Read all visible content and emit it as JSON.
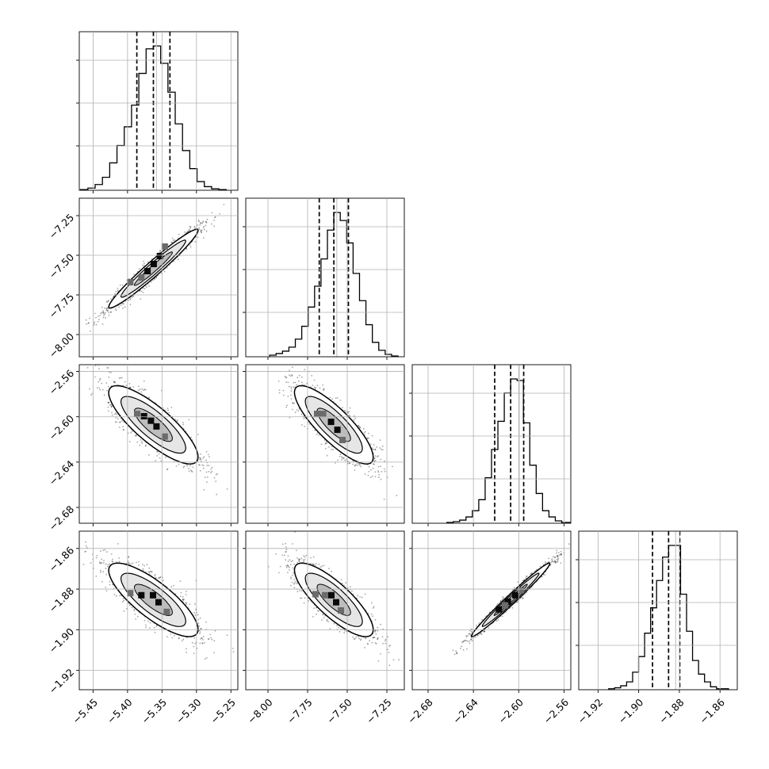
{
  "chart_data": {
    "type": "corner",
    "grid": true,
    "params": [
      {
        "range": [
          -5.47,
          -5.24
        ],
        "ticks": [
          -5.45,
          -5.4,
          -5.35,
          -5.3,
          -5.25
        ],
        "tick_labels": [
          "−5.45",
          "−5.40",
          "−5.35",
          "−5.30",
          "−5.25"
        ],
        "quantiles": [
          -5.3865,
          -5.3625,
          -5.3385
        ],
        "truth": -5.358,
        "hist_counts": [
          1,
          3,
          8,
          18,
          38,
          62,
          88,
          118,
          162,
          196,
          200,
          176,
          136,
          92,
          55,
          30,
          12,
          5,
          2,
          1
        ]
      },
      {
        "range": [
          -8.14,
          -7.14
        ],
        "ticks": [
          -8.0,
          -7.75,
          -7.5,
          -7.25
        ],
        "tick_labels": [
          "−8.00",
          "−7.75",
          "−7.50",
          "−7.25"
        ],
        "quantiles": [
          -7.6765,
          -7.5845,
          -7.4925
        ],
        "truth": -7.566,
        "hist_counts": [
          2,
          4,
          7,
          12,
          22,
          38,
          62,
          88,
          122,
          158,
          180,
          170,
          142,
          104,
          70,
          40,
          18,
          8,
          3,
          1
        ]
      },
      {
        "range": [
          -2.694,
          -2.554
        ],
        "ticks": [
          -2.68,
          -2.64,
          -2.6,
          -2.56
        ],
        "tick_labels": [
          "−2.68",
          "−2.64",
          "−2.60",
          "−2.56"
        ],
        "quantiles": [
          -2.6212,
          -2.6071,
          -2.5956
        ],
        "truth": -2.5995,
        "hist_counts": [
          1,
          2,
          4,
          8,
          16,
          30,
          58,
          94,
          130,
          166,
          184,
          182,
          128,
          74,
          38,
          16,
          8,
          3,
          1,
          1
        ]
      },
      {
        "range": [
          -1.9295,
          -1.8515
        ],
        "ticks": [
          -1.92,
          -1.9,
          -1.88,
          -1.86
        ],
        "tick_labels": [
          "−1.92",
          "−1.90",
          "−1.88",
          "−1.86"
        ],
        "quantiles": [
          -1.8932,
          -1.8853,
          -1.8798
        ],
        "truth": -1.8818,
        "hist_counts": [
          1,
          2,
          4,
          8,
          18,
          34,
          58,
          84,
          112,
          136,
          148,
          148,
          98,
          60,
          30,
          16,
          8,
          3,
          1,
          1
        ]
      }
    ],
    "density_cells": [
      {
        "row": 1,
        "col": 0,
        "cells": [
          [
            -5.371,
            -7.6,
            2
          ],
          [
            -5.353,
            -7.505,
            2
          ],
          [
            -5.362,
            -7.555,
            2
          ],
          [
            -5.38,
            -7.64,
            1
          ],
          [
            -5.396,
            -7.67,
            1
          ],
          [
            -5.346,
            -7.445,
            1
          ]
        ]
      },
      {
        "row": 2,
        "col": 0,
        "cells": [
          [
            -5.376,
            -2.5995,
            2
          ],
          [
            -5.366,
            -2.6035,
            2
          ],
          [
            -5.358,
            -2.6085,
            2
          ],
          [
            -5.346,
            -2.6175,
            1
          ],
          [
            -5.386,
            -2.5975,
            1
          ]
        ]
      },
      {
        "row": 2,
        "col": 1,
        "cells": [
          [
            -7.602,
            -2.6045,
            2
          ],
          [
            -7.562,
            -2.6115,
            2
          ],
          [
            -7.652,
            -2.5975,
            1
          ],
          [
            -7.53,
            -2.6205,
            1
          ],
          [
            -7.69,
            -2.5975,
            1
          ]
        ]
      },
      {
        "row": 3,
        "col": 0,
        "cells": [
          [
            -5.38,
            -1.883,
            2
          ],
          [
            -5.363,
            -1.883,
            2
          ],
          [
            -5.355,
            -1.8865,
            2
          ],
          [
            -5.343,
            -1.8912,
            1
          ],
          [
            -5.396,
            -1.882,
            1
          ]
        ]
      },
      {
        "row": 3,
        "col": 1,
        "cells": [
          [
            -7.6,
            -1.883,
            2
          ],
          [
            -7.57,
            -1.8865,
            2
          ],
          [
            -7.54,
            -1.8905,
            1
          ],
          [
            -7.64,
            -1.883,
            1
          ],
          [
            -7.7,
            -1.8825,
            1
          ]
        ]
      },
      {
        "row": 3,
        "col": 2,
        "cells": [
          [
            -2.6175,
            -1.89,
            2
          ],
          [
            -2.6095,
            -1.8862,
            2
          ],
          [
            -2.603,
            -1.883,
            2
          ],
          [
            -2.598,
            -1.8805,
            1
          ],
          [
            -2.612,
            -1.888,
            1
          ]
        ]
      }
    ]
  }
}
